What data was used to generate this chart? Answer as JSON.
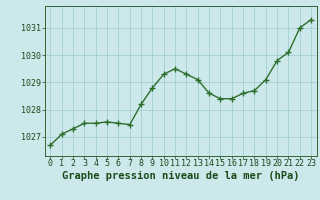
{
  "x": [
    0,
    1,
    2,
    3,
    4,
    5,
    6,
    7,
    8,
    9,
    10,
    11,
    12,
    13,
    14,
    15,
    16,
    17,
    18,
    19,
    20,
    21,
    22,
    23
  ],
  "y": [
    1026.7,
    1027.1,
    1027.3,
    1027.5,
    1027.5,
    1027.55,
    1027.5,
    1027.45,
    1028.2,
    1028.8,
    1029.3,
    1029.5,
    1029.3,
    1029.1,
    1028.6,
    1028.4,
    1028.4,
    1028.6,
    1028.7,
    1029.1,
    1029.8,
    1030.1,
    1031.0,
    1031.3
  ],
  "line_color": "#2d6e2d",
  "marker": "+",
  "marker_size": 4,
  "line_width": 1.0,
  "bg_color": "#cce8ea",
  "grid_color": "#99cccc",
  "title": "Graphe pression niveau de la mer (hPa)",
  "title_color": "#1a4a1a",
  "title_fontsize": 7.5,
  "tick_color": "#1a4a1a",
  "ylim": [
    1026.3,
    1031.8
  ],
  "yticks": [
    1027,
    1028,
    1029,
    1030,
    1031
  ],
  "xlim": [
    -0.5,
    23.5
  ],
  "xticks": [
    0,
    1,
    2,
    3,
    4,
    5,
    6,
    7,
    8,
    9,
    10,
    11,
    12,
    13,
    14,
    15,
    16,
    17,
    18,
    19,
    20,
    21,
    22,
    23
  ],
  "tick_fontsize": 6.0,
  "spine_color": "#336633"
}
